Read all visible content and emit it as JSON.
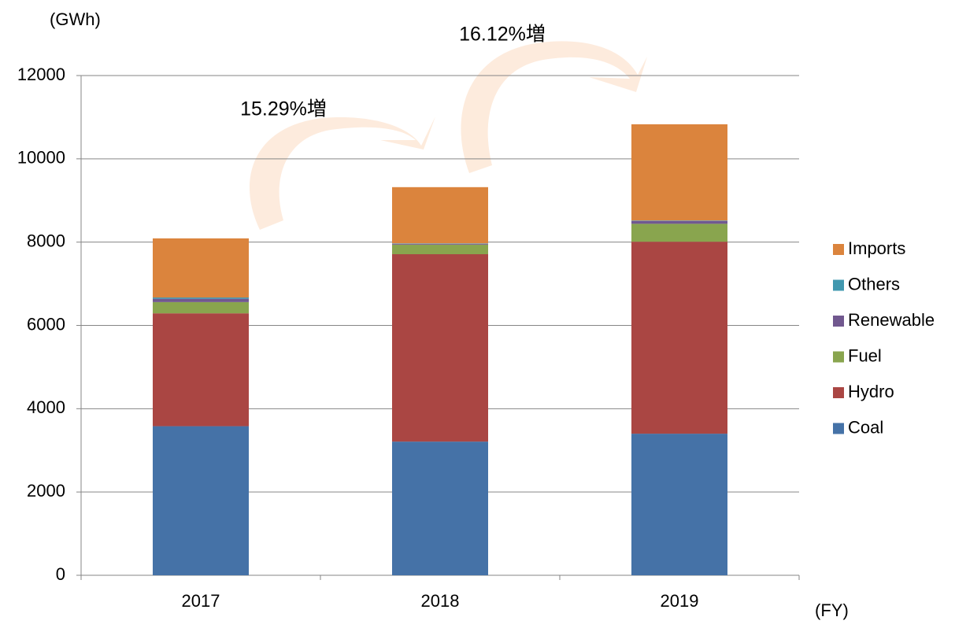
{
  "chart_data": {
    "type": "stacked_bar",
    "y_label": "(GWh)",
    "x_label": "(FY)",
    "categories": [
      "2017",
      "2018",
      "2019"
    ],
    "series": [
      {
        "name": "Coal",
        "color": "#4572a7",
        "values": [
          3580,
          3210,
          3400
        ]
      },
      {
        "name": "Hydro",
        "color": "#aa4643",
        "values": [
          2710,
          4500,
          4610
        ]
      },
      {
        "name": "Fuel",
        "color": "#89a54e",
        "values": [
          270,
          230,
          430
        ]
      },
      {
        "name": "Renewable",
        "color": "#71588f",
        "values": [
          80,
          20,
          70
        ]
      },
      {
        "name": "Others",
        "color": "#4198af",
        "values": [
          30,
          10,
          10
        ]
      },
      {
        "name": "Imports",
        "color": "#db843d",
        "values": [
          1420,
          1350,
          2310
        ]
      }
    ],
    "annotations": [
      "15.29%増",
      "16.12%増"
    ],
    "ylim": [
      0,
      12000
    ],
    "yticks": [
      0,
      2000,
      4000,
      6000,
      8000,
      10000,
      12000
    ],
    "grid": true,
    "legend": "right"
  }
}
